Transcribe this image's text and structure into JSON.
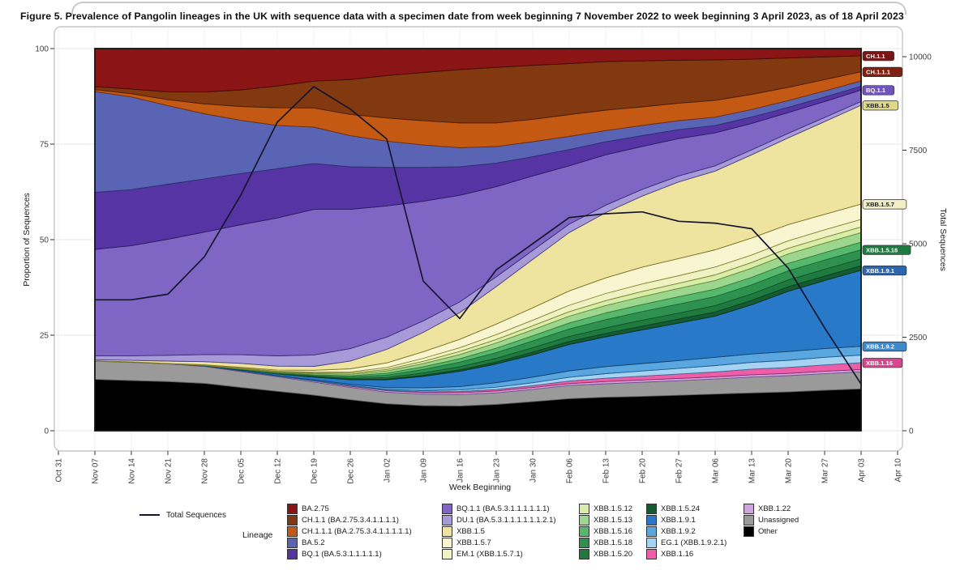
{
  "title": "Figure 5. Prevalence of Pangolin lineages in the UK with sequence data with a specimen date from week beginning 7 November 2022 to week beginning 3 April 2023, as of 18 April 2023",
  "axes": {
    "x": {
      "title": "Week Beginning",
      "tick_labels": [
        "Oct 31",
        "Nov 07",
        "Nov 14",
        "Nov 21",
        "Nov 28",
        "Dec 05",
        "Dec 12",
        "Dec 19",
        "Dec 26",
        "Jan 02",
        "Jan 09",
        "Jan 16",
        "Jan 23",
        "Jan 30",
        "Feb 06",
        "Feb 13",
        "Feb 20",
        "Feb 27",
        "Mar 06",
        "Mar 13",
        "Mar 20",
        "Mar 27",
        "Apr 03",
        "Apr 10"
      ]
    },
    "y_left": {
      "title": "Proportion of Sequences",
      "ticks": [
        0,
        25,
        50,
        75,
        100
      ]
    },
    "y_right": {
      "title": "Total Sequences",
      "ticks": [
        0,
        2500,
        5000,
        7500,
        10000
      ]
    }
  },
  "legend": {
    "total_label": "Total Sequences",
    "title": "Lineage",
    "columns": [
      [
        "BA.2.75",
        "CH.1.1",
        "CH.1.1.1",
        "BA.5.2",
        "BQ.1"
      ],
      [
        "BQ.1.1",
        "DU.1",
        "XBB.1.5",
        "XBB.1.5.7",
        "EM.1"
      ],
      [
        "XBB.1.5.12",
        "XBB.1.5.13",
        "XBB.1.5.16",
        "XBB.1.5.18",
        "XBB.1.5.20"
      ],
      [
        "XBB.1.5.24",
        "XBB.1.9.1",
        "XBB.1.9.2",
        "EG.1",
        "XBB.1.16"
      ],
      [
        "XBB.1.22",
        "Unassigned",
        "Other"
      ]
    ]
  },
  "chart_data": {
    "type": "area",
    "title": "Stacked prevalence of Pangolin lineages with total sequences line",
    "xlabel": "Week Beginning",
    "ylabel_left": "Proportion of Sequences",
    "ylabel_right": "Total Sequences",
    "ylim_left": [
      0,
      100
    ],
    "ylim_right": [
      0,
      10000
    ],
    "grid": true,
    "legend_position": "bottom",
    "categories": [
      "Nov 07",
      "Nov 14",
      "Nov 21",
      "Nov 28",
      "Dec 05",
      "Dec 12",
      "Dec 19",
      "Dec 26",
      "Jan 02",
      "Jan 09",
      "Jan 16",
      "Jan 23",
      "Jan 30",
      "Feb 06",
      "Feb 13",
      "Feb 20",
      "Feb 27",
      "Mar 06",
      "Mar 13",
      "Mar 20",
      "Mar 27",
      "Apr 03"
    ],
    "series": [
      {
        "name": "Other",
        "legend_label": "Other",
        "color": "#000000",
        "stroke": "#000000",
        "values": [
          13.5,
          13,
          12.5,
          12,
          11,
          10,
          9.3,
          8,
          7,
          6.5,
          6.5,
          7,
          7.8,
          8.5,
          9,
          9.2,
          9.5,
          9.8,
          10,
          10.3,
          10.7,
          11
        ]
      },
      {
        "name": "Unassigned",
        "legend_label": "Unassigned",
        "color": "#9a9a9a",
        "stroke": "#5f5f5f",
        "values": [
          4.8,
          4.7,
          4.5,
          4.3,
          4,
          3.7,
          3.4,
          3.2,
          3,
          3,
          3,
          3.1,
          3.3,
          3.5,
          3.6,
          3.8,
          3.9,
          4,
          4.2,
          4.3,
          4.4,
          4.5
        ]
      },
      {
        "name": "XBB.1.22",
        "legend_label": "XBB.1.22",
        "color": "#cfa3e0",
        "stroke": "#7b4e94",
        "values": [
          0.1,
          0.1,
          0.1,
          0.1,
          0.2,
          0.2,
          0.3,
          0.3,
          0.4,
          0.4,
          0.5,
          0.5,
          0.5,
          0.5,
          0.6,
          0.6,
          0.6,
          0.6,
          0.6,
          0.6,
          0.6,
          0.6
        ]
      },
      {
        "name": "XBB.1.16",
        "legend_label": "XBB.1.16",
        "color": "#ec5fa8",
        "stroke": "#93275f",
        "values": [
          0,
          0,
          0,
          0,
          0,
          0,
          0,
          0.1,
          0.1,
          0.2,
          0.3,
          0.4,
          0.5,
          0.7,
          0.9,
          1,
          1.2,
          1.3,
          1.5,
          1.6,
          1.7,
          1.8
        ]
      },
      {
        "name": "EG.1",
        "legend_label": "EG.1 (XBB.1.9.2.1)",
        "color": "#a7d3f2",
        "stroke": "#3a6d96",
        "values": [
          0,
          0,
          0,
          0,
          0,
          0,
          0.1,
          0.1,
          0.2,
          0.3,
          0.4,
          0.6,
          0.8,
          1,
          1.2,
          1.4,
          1.5,
          1.7,
          1.8,
          1.9,
          2,
          2
        ]
      },
      {
        "name": "XBB.1.9.2",
        "legend_label": "XBB.1.9.2",
        "color": "#5aa7e0",
        "stroke": "#1d5d93",
        "values": [
          0,
          0,
          0,
          0,
          0.1,
          0.1,
          0.2,
          0.3,
          0.5,
          0.7,
          0.9,
          1.2,
          1.5,
          1.7,
          1.9,
          2,
          2.1,
          2.2,
          2.2,
          2.3,
          2.3,
          2.3
        ]
      },
      {
        "name": "XBB.1.9.1",
        "legend_label": "XBB.1.9.1",
        "color": "#2979c9",
        "stroke": "#123f6e",
        "values": [
          0,
          0,
          0,
          0.1,
          0.2,
          0.4,
          0.7,
          1.2,
          2,
          3,
          4,
          5,
          6,
          7,
          8,
          9,
          10,
          11,
          13,
          16,
          18,
          20
        ]
      },
      {
        "name": "XBB.1.5.24",
        "legend_label": "XBB.1.5.24",
        "color": "#145a32",
        "stroke": "#06301a",
        "values": [
          0,
          0,
          0,
          0,
          0,
          0,
          0.1,
          0.1,
          0.2,
          0.3,
          0.4,
          0.5,
          0.7,
          0.8,
          0.9,
          1,
          1.1,
          1.1,
          1.2,
          1.2,
          1.2,
          1.2
        ]
      },
      {
        "name": "XBB.1.5.20",
        "legend_label": "XBB.1.5.20",
        "color": "#1f7a3f",
        "stroke": "#0d4423",
        "values": [
          0,
          0,
          0,
          0,
          0,
          0.1,
          0.1,
          0.2,
          0.4,
          0.6,
          0.8,
          1,
          1.2,
          1.3,
          1.5,
          1.6,
          1.6,
          1.7,
          1.7,
          1.8,
          1.8,
          1.8
        ]
      },
      {
        "name": "XBB.1.5.18",
        "legend_label": "XBB.1.5.18",
        "color": "#2f9150",
        "stroke": "#14532d",
        "values": [
          0,
          0,
          0,
          0,
          0.1,
          0.1,
          0.2,
          0.4,
          0.6,
          0.9,
          1.2,
          1.5,
          1.8,
          2,
          2.2,
          2.3,
          2.4,
          2.4,
          2.4,
          2.4,
          2.4,
          2.4
        ]
      },
      {
        "name": "XBB.1.5.16",
        "legend_label": "XBB.1.5.16",
        "color": "#55b86c",
        "stroke": "#1f6b38",
        "values": [
          0,
          0,
          0,
          0,
          0,
          0.1,
          0.2,
          0.3,
          0.5,
          0.7,
          0.9,
          1.2,
          1.4,
          1.6,
          1.8,
          1.9,
          2,
          2,
          2,
          2,
          2,
          2
        ]
      },
      {
        "name": "XBB.1.5.13",
        "legend_label": "XBB.1.5.13",
        "color": "#9cd68f",
        "stroke": "#3f7a37",
        "values": [
          0,
          0,
          0,
          0.1,
          0.1,
          0.2,
          0.3,
          0.4,
          0.6,
          0.8,
          1.1,
          1.4,
          1.6,
          1.8,
          2,
          2.1,
          2.2,
          2.3,
          2.4,
          2.5,
          2.5,
          2.5
        ]
      },
      {
        "name": "XBB.1.5.12",
        "legend_label": "XBB.1.5.12",
        "color": "#d9edaa",
        "stroke": "#6e8a33",
        "values": [
          0,
          0,
          0,
          0,
          0.1,
          0.1,
          0.2,
          0.3,
          0.4,
          0.6,
          0.8,
          0.9,
          1.1,
          1.2,
          1.3,
          1.4,
          1.4,
          1.5,
          1.5,
          1.5,
          1.5,
          1.5
        ]
      },
      {
        "name": "EM.1",
        "legend_label": "EM.1 (XBB.1.5.7.1)",
        "color": "#eff3c3",
        "stroke": "#83842f",
        "values": [
          0,
          0,
          0,
          0,
          0.1,
          0.1,
          0.2,
          0.3,
          0.5,
          0.8,
          1,
          1.3,
          1.5,
          1.7,
          1.9,
          2,
          2,
          2.1,
          2,
          2,
          2,
          2
        ]
      },
      {
        "name": "XBB.1.5.7",
        "legend_label": "XBB.1.5.7",
        "color": "#f9f5d0",
        "stroke": "#8d8735",
        "values": [
          0,
          0,
          0,
          0.1,
          0.2,
          0.3,
          0.5,
          0.8,
          1.2,
          1.7,
          2.2,
          2.8,
          3.3,
          3.8,
          4.2,
          4.5,
          4.6,
          4.6,
          4.5,
          4.3,
          4.1,
          4
        ]
      },
      {
        "name": "XBB.1.5",
        "legend_label": "XBB.1.5",
        "color": "#efe49f",
        "stroke": "#7d7428",
        "values": [
          0.3,
          0.4,
          0.6,
          0.8,
          1,
          1,
          1,
          2,
          3.5,
          5,
          7,
          10,
          13,
          15.5,
          17.5,
          19,
          20.5,
          21,
          22,
          23,
          24.5,
          26
        ]
      },
      {
        "name": "DU.1",
        "legend_label": "DU.1 (BA.5.3.1.1.1.1.1.1.2.1)",
        "color": "#a79ad8",
        "stroke": "#4a3f86",
        "values": [
          1,
          1.2,
          1.5,
          1.8,
          2.2,
          2.6,
          3,
          3.2,
          3.2,
          3,
          2.8,
          2.6,
          2.4,
          2.2,
          2,
          1.8,
          1.6,
          1.4,
          1.3,
          1.2,
          1.1,
          1
        ]
      },
      {
        "name": "BQ.1.1",
        "legend_label": "BQ.1.1 (BA.5.3.1.1.1.1.1.1)",
        "color": "#8066c4",
        "stroke": "#3b2a75",
        "values": [
          28,
          28.5,
          29.5,
          31,
          33,
          35,
          38,
          36,
          34,
          31,
          28,
          24,
          20,
          15.5,
          13.5,
          11.5,
          10,
          8.8,
          7,
          5.5,
          4.2,
          3
        ]
      },
      {
        "name": "BQ.1",
        "legend_label": "BQ.1 (BA.5.3.1.1.1.1.1)",
        "color": "#5634a3",
        "stroke": "#2c1a61",
        "values": [
          15,
          14.5,
          14,
          13.5,
          13,
          12.5,
          12,
          11,
          10,
          8.8,
          7.5,
          6.3,
          5.2,
          4.3,
          3.5,
          2.9,
          2.4,
          2,
          1.7,
          1.4,
          1.2,
          1
        ]
      },
      {
        "name": "BA.5.2",
        "legend_label": "BA.5.2",
        "color": "#5a64b4",
        "stroke": "#2b3272",
        "values": [
          26.5,
          24,
          20,
          16.5,
          13.5,
          11,
          9.5,
          8,
          6.8,
          5.8,
          5,
          4.4,
          4,
          3.5,
          3,
          2.7,
          2.4,
          2.2,
          2,
          1.8,
          1.6,
          1.4
        ]
      },
      {
        "name": "CH.1.1.1",
        "legend_label": "CH.1.1.1 (BA.2.75.3.4.1.1.1.1.1)",
        "color": "#c35912",
        "stroke": "#6e2f08",
        "values": [
          0.5,
          0.8,
          1.5,
          2.5,
          3.5,
          4.5,
          5,
          5.5,
          6,
          6.3,
          6.5,
          6.3,
          6,
          5.8,
          5.5,
          5,
          4.7,
          4.5,
          4,
          3.5,
          3,
          2.4
        ]
      },
      {
        "name": "CH.1.1",
        "legend_label": "CH.1.1 (BA.2.75.3.4.1.1.1.1)",
        "color": "#823910",
        "stroke": "#471c06",
        "values": [
          0.8,
          1.2,
          2,
          3,
          4.2,
          5.5,
          7,
          9,
          11,
          12.5,
          14,
          14.8,
          14.5,
          13.5,
          13,
          12.3,
          11.5,
          10.8,
          9.3,
          7.8,
          6,
          4.2
        ]
      },
      {
        "name": "BA.2.75",
        "legend_label": "BA.2.75",
        "color": "#8b1515",
        "stroke": "#3f0707",
        "values": [
          10,
          10.5,
          11,
          11,
          10.5,
          9.5,
          8.5,
          8,
          7,
          6.2,
          5.5,
          5,
          4.5,
          4,
          3.5,
          3.3,
          3.1,
          3,
          2.8,
          2.5,
          2.2,
          1.9
        ]
      }
    ],
    "total_sequences": {
      "name": "Total Sequences",
      "axis": "right",
      "color": "#15152e",
      "values": [
        3500,
        3500,
        3650,
        4650,
        6300,
        8250,
        9200,
        8600,
        7800,
        4000,
        3000,
        4300,
        5000,
        5700,
        5800,
        5850,
        5600,
        5550,
        5400,
        4350,
        2750,
        1250
      ]
    },
    "right_edge_labels": [
      {
        "series": "CH.1.1",
        "text": "CH.1.1",
        "bg": "#7a1515",
        "fg": "#ffffff"
      },
      {
        "series": "CH.1.1.1",
        "text": "CH.1.1.1",
        "bg": "#7e2012",
        "fg": "#ffffff"
      },
      {
        "series": "BQ.1.1",
        "text": "BQ.1.1",
        "bg": "#6f55bb",
        "fg": "#ffffff"
      },
      {
        "series": "XBB.1.5",
        "text": "XBB.1.5",
        "bg": "#ded98a",
        "fg": "#222222"
      },
      {
        "series": "XBB.1.5.7",
        "text": "XBB.1.5.7",
        "bg": "#f2eec4",
        "fg": "#222222"
      },
      {
        "series": "XBB.1.5.18",
        "text": "XBB.1.5.18",
        "bg": "#1e7a3e",
        "fg": "#ffffff"
      },
      {
        "series": "XBB.1.9.1",
        "text": "XBB.1.9.1",
        "bg": "#2b66ae",
        "fg": "#ffffff"
      },
      {
        "series": "XBB.1.9.2",
        "text": "XBB.1.9.2",
        "bg": "#3f88c9",
        "fg": "#ffffff"
      },
      {
        "series": "XBB.1.16",
        "text": "XBB.1.16",
        "bg": "#d6478f",
        "fg": "#ffffff"
      }
    ]
  }
}
